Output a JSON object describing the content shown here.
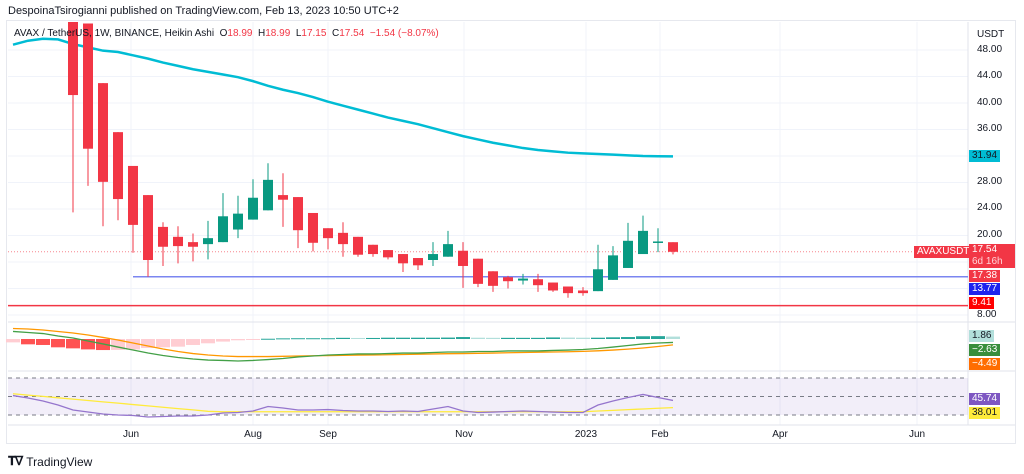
{
  "publish_line": "DespoinaTsirogianni published on TradingView.com, Feb 13, 2023 10:50 UTC+2",
  "legend": {
    "symbol": "AVAX / TetherUS, 1W, BINANCE, Heikin Ashi",
    "o_label": "O",
    "o": "18.99",
    "h_label": "H",
    "h": "18.99",
    "l_label": "L",
    "l": "17.15",
    "c_label": "C",
    "c": "17.54",
    "change": "−1.54 (−8.07%)"
  },
  "price_axis": {
    "unit": "USDT",
    "ticks": [
      "48.00",
      "44.00",
      "40.00",
      "36.00",
      "28.00",
      "24.00",
      "20.00",
      "8.00"
    ]
  },
  "price_labels": {
    "sma": "31.94",
    "symbol_tag": "AVAXUSDT",
    "last": "17.54",
    "countdown": "6d 16h",
    "other": "17.38",
    "support_blue": "13.77",
    "support_red": "9.41"
  },
  "indicator_labels": {
    "macd_hist": "1.86",
    "macd": "−2.63",
    "signal": "−4.49",
    "rsi": "45.74",
    "rsi_ma": "38.01"
  },
  "time_axis": [
    "Jun",
    "Aug",
    "Sep",
    "Nov",
    "2023",
    "Feb",
    "Apr",
    "Jun"
  ],
  "footer": {
    "brand": "TradingView"
  },
  "colors": {
    "up": "#089981",
    "down": "#f23645",
    "sma": "#00bcd4",
    "blue_line": "#7b86f0",
    "red_line": "#f23645",
    "macd": "#43a047",
    "signal": "#ff9800",
    "rsi": "#9575cd",
    "rsi_ma": "#ffeb3b"
  },
  "chart_data": {
    "type": "candlestick",
    "style": "Heikin Ashi",
    "interval": "1W",
    "ylim": [
      8,
      48
    ],
    "grid": true,
    "horizontal_lines": [
      13.77,
      9.41
    ],
    "candles": [
      [
        58,
        58,
        23.5,
        41.2
      ],
      [
        52,
        52,
        27.5,
        33.1
      ],
      [
        43,
        43,
        21.4,
        28.1
      ],
      [
        35.6,
        35.6,
        22.3,
        25.5
      ],
      [
        30.5,
        30.5,
        17.4,
        21.6
      ],
      [
        26.1,
        26.1,
        13.77,
        16.3
      ],
      [
        21.3,
        22.0,
        15.4,
        18.3
      ],
      [
        19.8,
        21.4,
        15.8,
        18.4
      ],
      [
        19.0,
        20.3,
        16.1,
        18.3
      ],
      [
        18.7,
        22.2,
        16.4,
        19.6
      ],
      [
        19.0,
        26.4,
        19.0,
        22.9
      ],
      [
        20.9,
        26.0,
        19.6,
        23.3
      ],
      [
        22.4,
        28.5,
        22.4,
        25.7
      ],
      [
        23.8,
        30.9,
        23.8,
        28.4
      ],
      [
        26.1,
        29.4,
        21.3,
        25.4
      ],
      [
        25.8,
        25.8,
        18.1,
        20.8
      ],
      [
        23.4,
        23.4,
        17.6,
        18.9
      ],
      [
        21.1,
        21.1,
        17.9,
        19.6
      ],
      [
        20.4,
        22.0,
        16.8,
        18.7
      ],
      [
        19.8,
        19.8,
        16.8,
        17.1
      ],
      [
        18.6,
        18.6,
        16.8,
        17.2
      ],
      [
        17.8,
        17.8,
        16.4,
        16.7
      ],
      [
        17.2,
        17.2,
        14.5,
        15.8
      ],
      [
        16.6,
        16.6,
        14.8,
        15.5
      ],
      [
        16.3,
        19.0,
        15.4,
        17.2
      ],
      [
        16.8,
        20.7,
        16.8,
        18.7
      ],
      [
        17.7,
        19.0,
        12.1,
        15.4
      ],
      [
        16.5,
        16.5,
        12.2,
        12.7
      ],
      [
        14.6,
        14.6,
        11.5,
        12.4
      ],
      [
        13.7,
        13.9,
        12.0,
        13.1
      ],
      [
        13.2,
        14.2,
        12.6,
        13.5
      ],
      [
        13.4,
        14.2,
        11.5,
        12.5
      ],
      [
        12.9,
        12.9,
        11.5,
        11.7
      ],
      [
        12.3,
        12.3,
        10.6,
        11.3
      ],
      [
        11.7,
        12.2,
        10.9,
        11.3
      ],
      [
        11.6,
        18.6,
        11.6,
        14.9
      ],
      [
        13.3,
        18.4,
        13.3,
        17.0
      ],
      [
        15.1,
        21.9,
        15.1,
        19.2
      ],
      [
        17.2,
        23.0,
        17.2,
        20.7
      ],
      [
        18.9,
        21.1,
        17.5,
        19.1
      ],
      [
        18.99,
        18.99,
        17.15,
        17.54
      ]
    ],
    "candle_fields": [
      "open",
      "high",
      "low",
      "close"
    ],
    "sma": [
      48.8,
      49.4,
      49.7,
      49.6,
      48.9,
      48.4,
      47.9,
      47.7,
      47.2,
      46.7,
      46.1,
      45.6,
      45.1,
      44.7,
      44.3,
      43.9,
      43.3,
      42.6,
      42.0,
      41.5,
      40.9,
      40.2,
      39.6,
      39.0,
      38.4,
      37.8,
      37.3,
      36.8,
      36.2,
      35.6,
      35.0,
      34.5,
      34.0,
      33.6,
      33.2,
      32.9,
      32.7,
      32.5,
      32.4,
      32.3,
      32.2,
      32.1,
      32.0,
      31.97,
      31.94
    ],
    "macd": [
      5.8,
      5.0,
      4.2,
      2.3,
      0.8,
      -1.5,
      -3.8,
      -6.2,
      -8.5,
      -10.8,
      -12.7,
      -14.2,
      -15.4,
      -16.2,
      -16.5,
      -16.9,
      -16.5,
      -15.8,
      -15.0,
      -13.8,
      -13.1,
      -12.3,
      -11.9,
      -11.5,
      -11.5,
      -11.2,
      -10.8,
      -10.8,
      -10.4,
      -10.0,
      -10.0,
      -9.6,
      -9.6,
      -9.2,
      -9.2,
      -9.2,
      -8.8,
      -8.5,
      -8.1,
      -7.3,
      -6.2,
      -5.0,
      -3.8,
      -3.1,
      -2.63
    ],
    "signal": [
      8.1,
      7.7,
      6.9,
      5.8,
      4.6,
      3.1,
      1.2,
      -0.8,
      -3.1,
      -5.4,
      -7.7,
      -9.6,
      -11.2,
      -12.3,
      -13.1,
      -13.5,
      -13.5,
      -13.5,
      -13.3,
      -13.1,
      -12.9,
      -12.8,
      -12.6,
      -12.4,
      -12.3,
      -12.1,
      -11.9,
      -11.7,
      -11.5,
      -11.3,
      -11.2,
      -11.0,
      -10.8,
      -10.6,
      -10.4,
      -10.2,
      -10.0,
      -9.8,
      -9.5,
      -9.1,
      -8.5,
      -7.8,
      -6.9,
      -5.8,
      -4.49
    ],
    "histogram": [
      -2.6,
      -4.1,
      -4.6,
      -6.4,
      -7.2,
      -8.0,
      -8.5,
      -8.4,
      -8.0,
      -6.9,
      -6.4,
      -5.9,
      -4.6,
      -3.3,
      -2.0,
      -1.0,
      -0.5,
      0.2,
      0.5,
      0.6,
      0.6,
      0.6,
      0.9,
      0.8,
      0.8,
      1.0,
      1.0,
      1.0,
      1.0,
      1.1,
      1.5,
      1.0,
      0.9,
      0.9,
      0.9,
      0.9,
      1.2,
      1.1,
      1.0,
      1.0,
      1.3,
      1.5,
      2.1,
      2.2,
      1.86
    ],
    "rsi": [
      51,
      48.4,
      45.1,
      40.8,
      35.4,
      33.2,
      31.1,
      30,
      29.5,
      27.8,
      28.4,
      28.9,
      28.9,
      30,
      32.2,
      32.7,
      34.3,
      39.2,
      37.6,
      35.4,
      35.4,
      35.9,
      34.9,
      34.3,
      34.3,
      33.8,
      34.3,
      33.8,
      36.5,
      39.2,
      34.3,
      32.7,
      33.2,
      33.8,
      34.3,
      33.8,
      33.2,
      32.7,
      32.7,
      40.8,
      45.1,
      48.9,
      52.2,
      48.9,
      45.74
    ],
    "rsi_ma": [
      53,
      51.5,
      50.1,
      48.6,
      47.2,
      45.7,
      44.2,
      42.8,
      41.3,
      39.9,
      38.4,
      36.9,
      35.5,
      34.0,
      33.5,
      33.5,
      33.5,
      33.5,
      33.5,
      33.5,
      33.5,
      33.5,
      33.5,
      33.5,
      33.5,
      33.5,
      33.5,
      33.5,
      33.5,
      33.5,
      33.5,
      33.5,
      33.5,
      33.5,
      33.5,
      33.5,
      33.5,
      33.5,
      33.5,
      34.3,
      35.0,
      35.8,
      36.5,
      37.3,
      38.01
    ],
    "rsi_levels": [
      70,
      50,
      30
    ]
  }
}
